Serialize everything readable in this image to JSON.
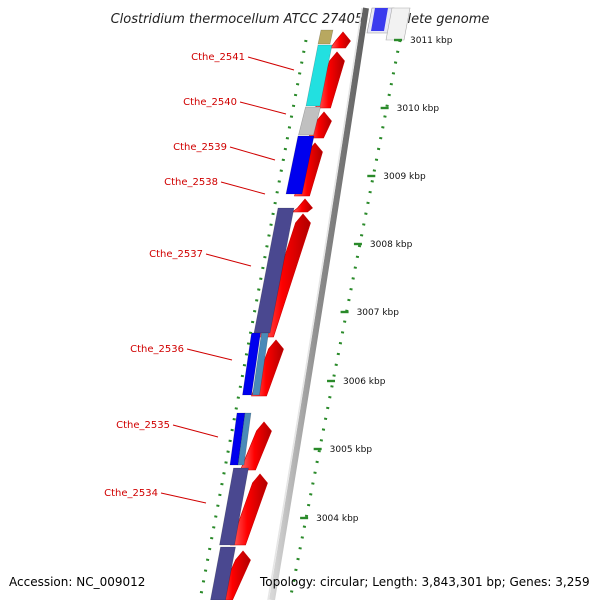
{
  "header": {
    "title": "Clostridium thermocellum ATCC 27405, complete genome"
  },
  "footer": {
    "accession": "Accession: NC_009012",
    "topology": "Topology: circular; Length: 3,843,301 bp; Genes: 3,259"
  },
  "genes": [
    {
      "name": "Cthe_2541"
    },
    {
      "name": "Cthe_2540"
    },
    {
      "name": "Cthe_2539"
    },
    {
      "name": "Cthe_2538"
    },
    {
      "name": "Cthe_2537"
    },
    {
      "name": "Cthe_2536"
    },
    {
      "name": "Cthe_2535"
    },
    {
      "name": "Cthe_2534"
    }
  ],
  "scale_ticks": [
    "3011 kbp",
    "3010 kbp",
    "3009 kbp",
    "3008 kbp",
    "3007 kbp",
    "3006 kbp",
    "3005 kbp",
    "3004 kbp"
  ],
  "colors": {
    "label": "#d00000",
    "tick": "#2a8a2a",
    "forward_arrow": "#ff0000",
    "backbone": "#8c8c8c",
    "feature_olive": "#b8a860",
    "feature_cyan": "#22e0e0",
    "feature_grey": "#c0c0c0",
    "feature_blue": "#0000ee",
    "feature_slate": "#4a4890",
    "feature_steel": "#4a8ab8"
  }
}
